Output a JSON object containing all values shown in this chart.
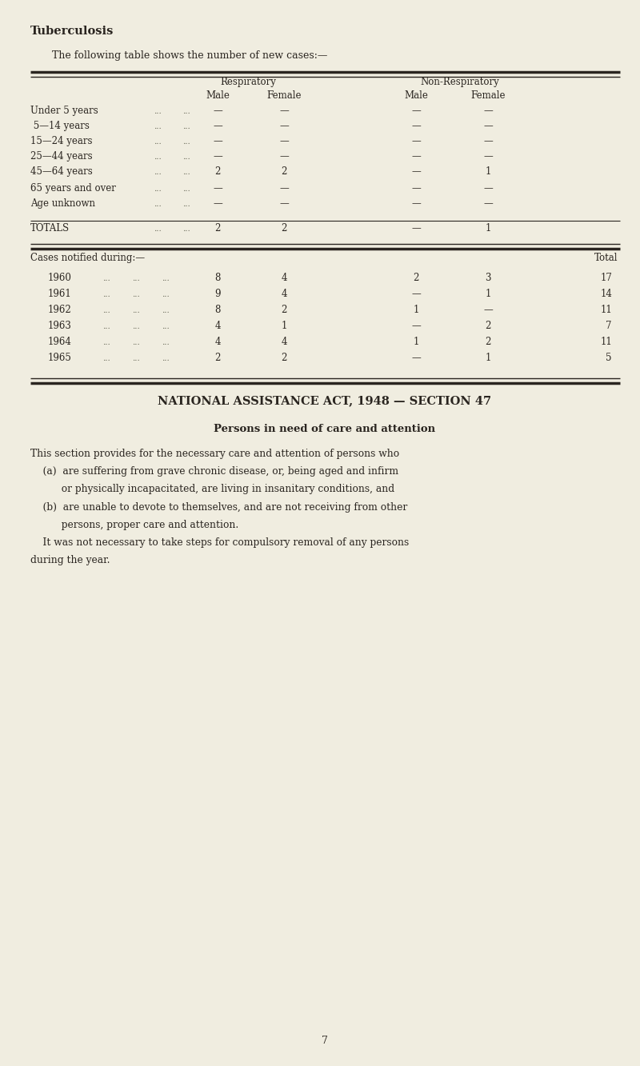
{
  "bg_color": "#f0ede0",
  "text_color": "#2a2520",
  "title": "Tuberculosis",
  "subtitle": "The following table shows the number of new cases:—",
  "table1_header1": "Respiratory",
  "table1_header2": "Non-Respiratory",
  "table1_subheaders": [
    "Male",
    "Female",
    "Male",
    "Female"
  ],
  "table1_rows": [
    [
      "Under 5 years",
      "...",
      "...",
      "—",
      "—",
      "—",
      "—"
    ],
    [
      " 5—14 years",
      "...",
      "...",
      "—",
      "—",
      "—",
      "—"
    ],
    [
      "15—24 years",
      "...",
      "...",
      "—",
      "—",
      "—",
      "—"
    ],
    [
      "25—44 years",
      "...",
      "...",
      "—",
      "—",
      "—",
      "—"
    ],
    [
      "45—64 years",
      "...",
      "...",
      "2",
      "2",
      "—",
      "1"
    ],
    [
      "65 years and over",
      "...",
      "...",
      "—",
      "—",
      "—",
      "—"
    ],
    [
      "Age unknown",
      "...",
      "...",
      "—",
      "—",
      "—",
      "—"
    ]
  ],
  "table1_totals": [
    "TOTALS",
    "...",
    "...",
    "2",
    "2",
    "—",
    "1"
  ],
  "table2_label": "Cases notified during:—",
  "table2_total_label": "Total",
  "table2_rows": [
    [
      "1960",
      "...",
      "...",
      "...",
      "8",
      "4",
      "2",
      "3",
      "17"
    ],
    [
      "1961",
      "...",
      "...",
      "...",
      "9",
      "4",
      "—",
      "1",
      "14"
    ],
    [
      "1962",
      "...",
      "...",
      "...",
      "8",
      "2",
      "1",
      "—",
      "11"
    ],
    [
      "1963",
      "...",
      "...",
      "...",
      "4",
      "1",
      "—",
      "2",
      "7"
    ],
    [
      "1964",
      "...",
      "...",
      "...",
      "4",
      "4",
      "1",
      "2",
      "11"
    ],
    [
      "1965",
      "...",
      "...",
      "...",
      "2",
      "2",
      "—",
      "1",
      "5"
    ]
  ],
  "section_title": "NATIONAL ASSISTANCE ACT, 1948 — SECTION 47",
  "section_subtitle": "Persons in need of care and attention",
  "body_line1": "This section provides for the necessary care and attention of persons who",
  "body_line2": "    (a)  are suffering from grave chronic disease, or, being aged and infirm",
  "body_line3": "          or physically incapacitated, are living in insanitary conditions, and",
  "body_line4": "    (b)  are unable to devote to themselves, and are not receiving from other",
  "body_line5": "          persons, proper care and attention.",
  "body_line6": "    It was not necessary to take steps for compulsory removal of any persons",
  "body_line7": "during the year.",
  "page_number": "7"
}
